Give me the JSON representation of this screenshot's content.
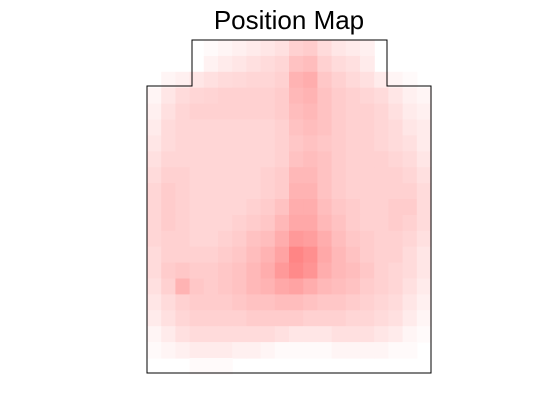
{
  "chart_data": {
    "type": "heatmap",
    "title": "Position Map",
    "xlabel": "",
    "ylabel": "",
    "colormap": {
      "low": "#ffffff",
      "high": "#ff0000"
    },
    "value_range": [
      0,
      1
    ],
    "grid": false,
    "rows": 21,
    "cols": 20,
    "values": [
      [
        0,
        0,
        0,
        0,
        0.02,
        0.04,
        0.06,
        0.08,
        0.1,
        0.12,
        0.18,
        0.2,
        0.14,
        0.1,
        0.08,
        0.06,
        0,
        0,
        0,
        0
      ],
      [
        0,
        0,
        0,
        0,
        0.05,
        0.08,
        0.1,
        0.12,
        0.14,
        0.16,
        0.24,
        0.26,
        0.18,
        0.14,
        0.12,
        0.08,
        0,
        0,
        0,
        0
      ],
      [
        0,
        0.04,
        0.06,
        0.1,
        0.12,
        0.14,
        0.15,
        0.16,
        0.16,
        0.18,
        0.3,
        0.32,
        0.22,
        0.18,
        0.15,
        0.12,
        0.08,
        0.04,
        0.02,
        0
      ],
      [
        0.04,
        0.1,
        0.14,
        0.16,
        0.17,
        0.18,
        0.18,
        0.18,
        0.18,
        0.2,
        0.28,
        0.3,
        0.24,
        0.2,
        0.18,
        0.16,
        0.14,
        0.1,
        0.06,
        0.04
      ],
      [
        0.06,
        0.12,
        0.16,
        0.18,
        0.18,
        0.18,
        0.18,
        0.18,
        0.18,
        0.2,
        0.26,
        0.28,
        0.24,
        0.2,
        0.18,
        0.18,
        0.16,
        0.12,
        0.08,
        0.06
      ],
      [
        0.08,
        0.14,
        0.16,
        0.16,
        0.16,
        0.16,
        0.16,
        0.16,
        0.16,
        0.18,
        0.24,
        0.26,
        0.24,
        0.2,
        0.18,
        0.18,
        0.16,
        0.14,
        0.1,
        0.08
      ],
      [
        0.1,
        0.14,
        0.16,
        0.16,
        0.16,
        0.16,
        0.16,
        0.16,
        0.16,
        0.18,
        0.22,
        0.24,
        0.22,
        0.2,
        0.18,
        0.18,
        0.16,
        0.14,
        0.12,
        0.08
      ],
      [
        0.12,
        0.16,
        0.16,
        0.16,
        0.16,
        0.16,
        0.16,
        0.16,
        0.16,
        0.18,
        0.24,
        0.26,
        0.24,
        0.2,
        0.18,
        0.18,
        0.18,
        0.16,
        0.14,
        0.1
      ],
      [
        0.14,
        0.18,
        0.18,
        0.16,
        0.16,
        0.16,
        0.16,
        0.16,
        0.18,
        0.2,
        0.28,
        0.28,
        0.24,
        0.2,
        0.18,
        0.18,
        0.18,
        0.18,
        0.16,
        0.12
      ],
      [
        0.16,
        0.2,
        0.18,
        0.16,
        0.16,
        0.16,
        0.16,
        0.16,
        0.18,
        0.2,
        0.3,
        0.3,
        0.24,
        0.2,
        0.18,
        0.18,
        0.18,
        0.18,
        0.18,
        0.14
      ],
      [
        0.16,
        0.2,
        0.18,
        0.16,
        0.16,
        0.16,
        0.16,
        0.18,
        0.2,
        0.24,
        0.32,
        0.32,
        0.26,
        0.22,
        0.2,
        0.18,
        0.18,
        0.2,
        0.2,
        0.14
      ],
      [
        0.16,
        0.2,
        0.18,
        0.16,
        0.16,
        0.16,
        0.18,
        0.2,
        0.22,
        0.28,
        0.34,
        0.34,
        0.28,
        0.24,
        0.2,
        0.18,
        0.18,
        0.2,
        0.18,
        0.14
      ],
      [
        0.16,
        0.18,
        0.18,
        0.16,
        0.16,
        0.18,
        0.2,
        0.24,
        0.26,
        0.32,
        0.4,
        0.38,
        0.32,
        0.26,
        0.22,
        0.2,
        0.18,
        0.18,
        0.16,
        0.12
      ],
      [
        0.14,
        0.18,
        0.18,
        0.18,
        0.18,
        0.2,
        0.22,
        0.26,
        0.3,
        0.36,
        0.48,
        0.44,
        0.34,
        0.28,
        0.24,
        0.2,
        0.18,
        0.18,
        0.14,
        0.1
      ],
      [
        0.14,
        0.2,
        0.22,
        0.2,
        0.2,
        0.22,
        0.24,
        0.28,
        0.32,
        0.4,
        0.46,
        0.42,
        0.32,
        0.28,
        0.26,
        0.22,
        0.18,
        0.16,
        0.14,
        0.1
      ],
      [
        0.12,
        0.18,
        0.3,
        0.22,
        0.2,
        0.22,
        0.24,
        0.28,
        0.3,
        0.34,
        0.36,
        0.32,
        0.28,
        0.26,
        0.24,
        0.2,
        0.18,
        0.16,
        0.12,
        0.08
      ],
      [
        0.1,
        0.14,
        0.18,
        0.2,
        0.2,
        0.2,
        0.22,
        0.24,
        0.24,
        0.26,
        0.26,
        0.24,
        0.22,
        0.22,
        0.2,
        0.18,
        0.16,
        0.14,
        0.1,
        0.06
      ],
      [
        0.08,
        0.12,
        0.16,
        0.18,
        0.18,
        0.18,
        0.18,
        0.2,
        0.2,
        0.2,
        0.2,
        0.18,
        0.18,
        0.18,
        0.16,
        0.16,
        0.14,
        0.12,
        0.08,
        0.04
      ],
      [
        0.04,
        0.08,
        0.12,
        0.14,
        0.14,
        0.14,
        0.14,
        0.14,
        0.14,
        0.12,
        0.1,
        0.1,
        0.1,
        0.12,
        0.12,
        0.12,
        0.1,
        0.08,
        0.04,
        0.02
      ],
      [
        0.02,
        0.04,
        0.06,
        0.08,
        0.08,
        0.08,
        0.06,
        0.06,
        0.04,
        0.02,
        0.02,
        0.02,
        0.02,
        0.04,
        0.04,
        0.04,
        0.04,
        0.02,
        0.02,
        0
      ],
      [
        0,
        0,
        0,
        0.02,
        0.02,
        0.02,
        0,
        0,
        0,
        0,
        0,
        0,
        0,
        0,
        0,
        0,
        0,
        0,
        0,
        0
      ]
    ]
  }
}
